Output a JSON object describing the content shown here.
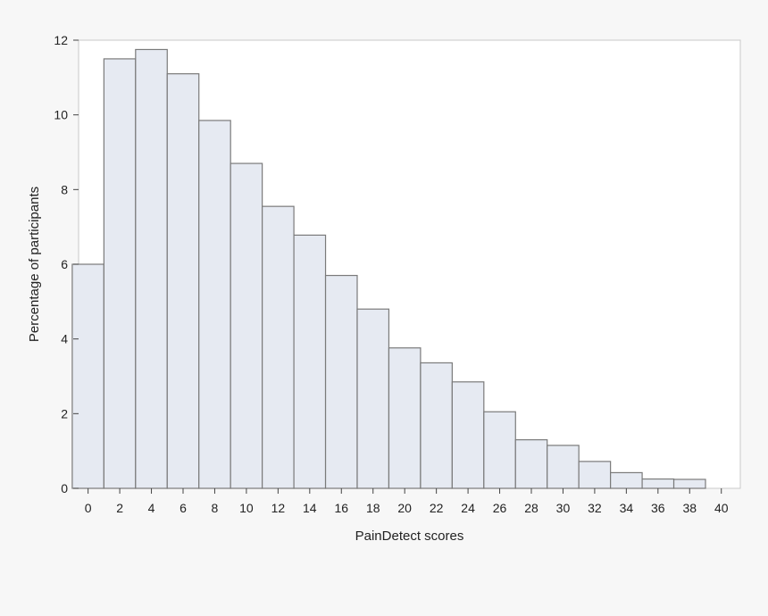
{
  "chart_data": {
    "type": "bar",
    "title": "",
    "xlabel": "PainDetect scores",
    "ylabel": "Percentage of participants",
    "x_ticks": [
      0,
      2,
      4,
      6,
      8,
      10,
      12,
      14,
      16,
      18,
      20,
      22,
      24,
      26,
      28,
      30,
      32,
      34,
      36,
      38,
      40
    ],
    "y_ticks": [
      0,
      2,
      4,
      6,
      8,
      10,
      12
    ],
    "xlim": [
      -0.6,
      41.2
    ],
    "ylim": [
      0,
      12
    ],
    "bin_width": 2,
    "bins": [
      {
        "start": -1,
        "value": 6.0
      },
      {
        "start": 1,
        "value": 11.5
      },
      {
        "start": 3,
        "value": 11.75
      },
      {
        "start": 5,
        "value": 11.1
      },
      {
        "start": 7,
        "value": 9.85
      },
      {
        "start": 9,
        "value": 8.7
      },
      {
        "start": 11,
        "value": 7.55
      },
      {
        "start": 13,
        "value": 6.78
      },
      {
        "start": 15,
        "value": 5.7
      },
      {
        "start": 17,
        "value": 4.8
      },
      {
        "start": 19,
        "value": 3.76
      },
      {
        "start": 21,
        "value": 3.36
      },
      {
        "start": 23,
        "value": 2.85
      },
      {
        "start": 25,
        "value": 2.05
      },
      {
        "start": 27,
        "value": 1.3
      },
      {
        "start": 29,
        "value": 1.15
      },
      {
        "start": 31,
        "value": 0.72
      },
      {
        "start": 33,
        "value": 0.42
      },
      {
        "start": 35,
        "value": 0.25
      },
      {
        "start": 37,
        "value": 0.24
      },
      {
        "start": 39,
        "value": 0.0
      }
    ],
    "grid": false,
    "legend": "none",
    "colors": {
      "bar_fill": "#e6eaf2",
      "bar_stroke": "#7a7a7a",
      "plot_background": "#ffffff",
      "frame": "#c8c8c8"
    }
  }
}
